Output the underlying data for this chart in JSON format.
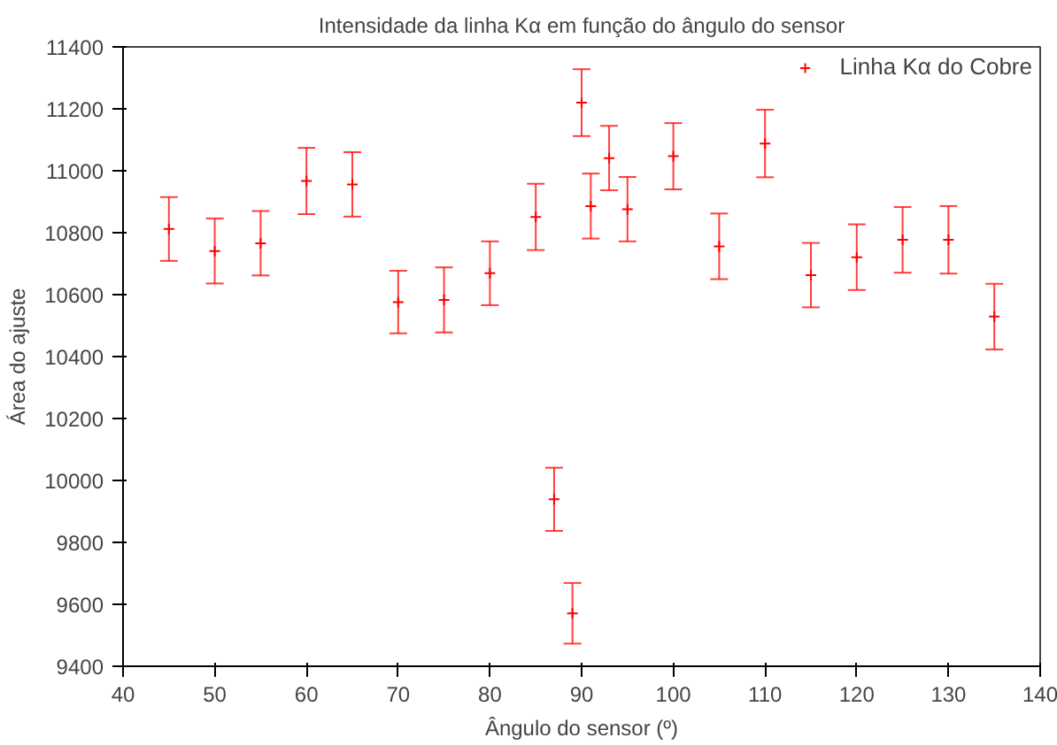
{
  "chart_data": {
    "type": "scatter",
    "title": "Intensidade da linha Kα em função do ângulo do sensor",
    "xlabel": "Ângulo do sensor (º)",
    "ylabel": "Área do ajuste",
    "x": [
      45,
      50,
      55,
      60,
      65,
      70,
      75,
      80,
      85,
      87,
      89,
      90,
      91,
      93,
      95,
      100,
      105,
      110,
      115,
      120,
      125,
      130,
      135
    ],
    "series": [
      {
        "name": "Linha Kα do Cobre",
        "color": "#ff0000",
        "values": [
          10812,
          10741,
          10766,
          10967,
          10956,
          10576,
          10583,
          10669,
          10851,
          9939,
          9571,
          11220,
          10886,
          11041,
          10876,
          11047,
          10756,
          11088,
          10663,
          10721,
          10777,
          10777,
          10529
        ],
        "errors": [
          103,
          105,
          104,
          107,
          104,
          101,
          105,
          103,
          107,
          102,
          98,
          108,
          105,
          104,
          104,
          107,
          106,
          109,
          104,
          106,
          106,
          109,
          106
        ]
      }
    ],
    "xlim": [
      40,
      140
    ],
    "ylim": [
      9400,
      11400
    ],
    "xticks": [
      40,
      50,
      60,
      70,
      80,
      90,
      100,
      110,
      120,
      130,
      140
    ],
    "yticks": [
      9400,
      9600,
      9800,
      10000,
      10200,
      10400,
      10600,
      10800,
      11000,
      11200,
      11400
    ],
    "grid": false,
    "legend": "top right",
    "marker": "cross"
  }
}
